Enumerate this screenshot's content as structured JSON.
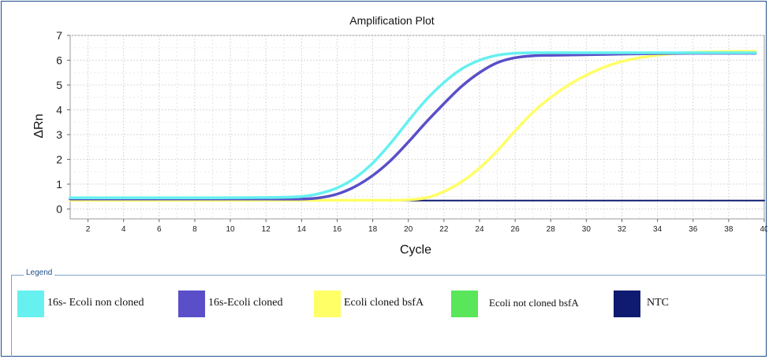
{
  "chart_data": {
    "type": "line",
    "title": "Amplification Plot",
    "xlabel": "Cycle",
    "ylabel": "ΔRn",
    "xlim": [
      1,
      40
    ],
    "ylim": [
      -0.4,
      7
    ],
    "x_ticks": [
      2,
      4,
      6,
      8,
      10,
      12,
      14,
      16,
      18,
      20,
      22,
      24,
      26,
      28,
      30,
      32,
      34,
      36,
      38,
      40
    ],
    "y_ticks": [
      0,
      1,
      2,
      3,
      4,
      5,
      6,
      7
    ],
    "grid": true,
    "legend_position": "bottom",
    "series": [
      {
        "name": "16s- Ecoli non cloned",
        "color": "#66f0f0",
        "x": [
          1,
          4,
          8,
          12,
          14,
          15,
          16,
          17,
          18,
          19,
          20,
          21,
          22,
          23,
          24,
          25,
          26,
          27,
          28,
          30,
          32,
          34,
          36,
          38,
          39.5
        ],
        "y": [
          0.45,
          0.45,
          0.45,
          0.46,
          0.5,
          0.62,
          0.85,
          1.25,
          1.85,
          2.65,
          3.55,
          4.4,
          5.1,
          5.65,
          6.0,
          6.2,
          6.28,
          6.3,
          6.3,
          6.3,
          6.3,
          6.3,
          6.3,
          6.3,
          6.3
        ]
      },
      {
        "name": "16s-Ecoli  cloned",
        "color": "#5a4fc8",
        "x": [
          1,
          4,
          8,
          12,
          14,
          15,
          16,
          17,
          18,
          19,
          20,
          21,
          22,
          23,
          24,
          25,
          26,
          27,
          28,
          30,
          32,
          34,
          36,
          38,
          39.5
        ],
        "y": [
          0.4,
          0.4,
          0.4,
          0.4,
          0.4,
          0.45,
          0.6,
          0.9,
          1.35,
          1.95,
          2.7,
          3.5,
          4.25,
          4.95,
          5.5,
          5.9,
          6.1,
          6.18,
          6.2,
          6.22,
          6.25,
          6.27,
          6.28,
          6.28,
          6.28
        ]
      },
      {
        "name": "Ecoli cloned bsfA",
        "color": "#ffff66",
        "x": [
          1,
          4,
          8,
          12,
          16,
          19,
          20,
          21,
          22,
          23,
          24,
          25,
          26,
          27,
          28,
          29,
          30,
          31,
          32,
          33,
          34,
          35,
          36,
          38,
          39.5
        ],
        "y": [
          0.35,
          0.35,
          0.35,
          0.35,
          0.35,
          0.35,
          0.37,
          0.45,
          0.7,
          1.1,
          1.65,
          2.35,
          3.15,
          3.9,
          4.5,
          5.0,
          5.4,
          5.72,
          5.95,
          6.1,
          6.2,
          6.27,
          6.32,
          6.35,
          6.36
        ]
      },
      {
        "name": "Ecoli not cloned bsfA",
        "color": "#5ae65a",
        "x": [],
        "y": []
      },
      {
        "name": "NTC",
        "color": "#0f1b70",
        "x": [
          1,
          40
        ],
        "y": [
          0.34,
          0.34
        ]
      }
    ]
  }
}
